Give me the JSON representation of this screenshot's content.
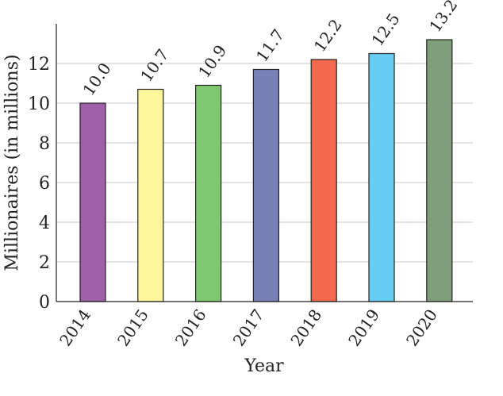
{
  "chart_data": {
    "type": "bar",
    "categories": [
      "2014",
      "2015",
      "2016",
      "2017",
      "2018",
      "2019",
      "2020"
    ],
    "values": [
      10.0,
      10.7,
      10.9,
      11.7,
      12.2,
      12.5,
      13.2
    ],
    "value_labels": [
      "10.0",
      "10.7",
      "10.9",
      "11.7",
      "12.2",
      "12.5",
      "13.2"
    ],
    "colors": [
      "#a15ea9",
      "#fff799",
      "#80c870",
      "#7880b6",
      "#f2694f",
      "#66cdf5",
      "#7f9e7b"
    ],
    "title": "",
    "xlabel": "Year",
    "ylabel": "Millionaires (in millions)",
    "ylim": [
      0,
      14
    ],
    "yticks": [
      0,
      2,
      4,
      6,
      8,
      10,
      12
    ],
    "grid": true,
    "legend": "none"
  }
}
